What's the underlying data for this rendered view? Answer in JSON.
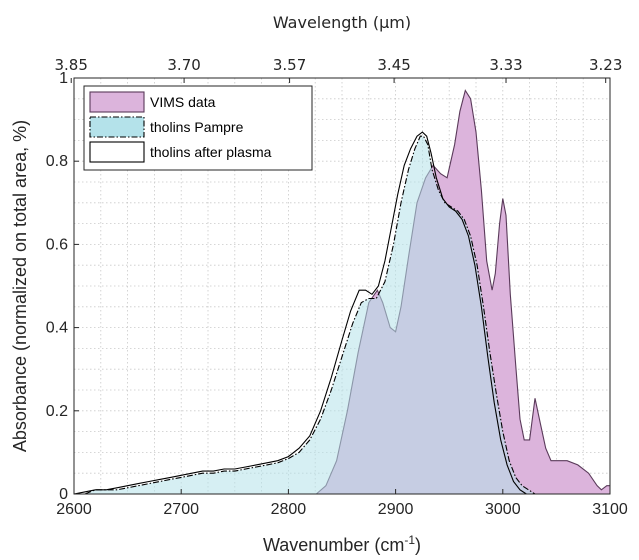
{
  "chart_data": {
    "type": "area",
    "xlabel": "Wavenumber (cm",
    "xlabel_sup": "-1",
    "xlabel_end": ")",
    "ylabel": "Absorbance (normalized on total area, %)",
    "top_xlabel": "Wavelength (µm)",
    "xlim": [
      2600,
      3100
    ],
    "ylim": [
      0,
      1
    ],
    "x_ticks": [
      2600,
      2700,
      2800,
      2900,
      3000,
      3100
    ],
    "x_tick_labels": [
      "2600",
      "2700",
      "2800",
      "2900",
      "3000",
      "3100"
    ],
    "y_ticks": [
      0,
      0.2,
      0.4,
      0.6,
      0.8,
      1
    ],
    "y_tick_labels": [
      "0",
      "0.2",
      "0.4",
      "0.6",
      "0.8",
      "1"
    ],
    "top_ticks": [
      {
        "wavenumber": 2597.4,
        "label": "3.85"
      },
      {
        "wavenumber": 2702.7,
        "label": "3.70"
      },
      {
        "wavenumber": 2801.1,
        "label": "3.57"
      },
      {
        "wavenumber": 2898.6,
        "label": "3.45"
      },
      {
        "wavenumber": 3003.0,
        "label": "3.33"
      },
      {
        "wavenumber": 3095.98,
        "label": "3.23"
      }
    ],
    "grid": true,
    "legend_position": "top-left",
    "series": [
      {
        "name": "VIMS data",
        "style": "filled",
        "fill": "#dcb4dc",
        "stroke": "#5a3a5a",
        "dash": "",
        "x": [
          2826,
          2835,
          2845,
          2855,
          2865,
          2875,
          2883,
          2888,
          2895,
          2900,
          2905,
          2912,
          2920,
          2928,
          2935,
          2942,
          2948,
          2955,
          2960,
          2965,
          2970,
          2975,
          2980,
          2985,
          2990,
          2993,
          2997,
          3000,
          3003,
          3007,
          3012,
          3016,
          3020,
          3025,
          3030,
          3035,
          3040,
          3045,
          3050,
          3060,
          3070,
          3080,
          3088,
          3092,
          3097,
          3100
        ],
        "y": [
          0.0,
          0.02,
          0.08,
          0.2,
          0.34,
          0.46,
          0.49,
          0.46,
          0.4,
          0.39,
          0.45,
          0.57,
          0.7,
          0.76,
          0.79,
          0.77,
          0.76,
          0.84,
          0.92,
          0.97,
          0.95,
          0.87,
          0.73,
          0.56,
          0.49,
          0.53,
          0.65,
          0.71,
          0.67,
          0.48,
          0.31,
          0.18,
          0.13,
          0.13,
          0.23,
          0.17,
          0.11,
          0.08,
          0.08,
          0.08,
          0.07,
          0.05,
          0.02,
          0.01,
          0.02,
          0.02
        ]
      },
      {
        "name": "tholins Pampre",
        "style": "filled",
        "fill": "#b4e2ea",
        "stroke": "#000000",
        "dash": "6 2 1.5 2",
        "x": [
          2600,
          2610,
          2620,
          2630,
          2640,
          2650,
          2660,
          2670,
          2680,
          2690,
          2700,
          2710,
          2720,
          2730,
          2740,
          2750,
          2760,
          2770,
          2780,
          2790,
          2800,
          2810,
          2820,
          2830,
          2840,
          2850,
          2860,
          2868,
          2875,
          2882,
          2890,
          2898,
          2905,
          2912,
          2918,
          2923,
          2926,
          2930,
          2934,
          2940,
          2946,
          2952,
          2958,
          2964,
          2970,
          2976,
          2982,
          2988,
          2994,
          3000,
          3006,
          3012,
          3018,
          3024,
          3030
        ],
        "y": [
          0.0,
          0.0,
          0.01,
          0.01,
          0.01,
          0.015,
          0.02,
          0.025,
          0.03,
          0.035,
          0.04,
          0.045,
          0.05,
          0.05,
          0.055,
          0.055,
          0.06,
          0.065,
          0.07,
          0.075,
          0.085,
          0.1,
          0.13,
          0.18,
          0.25,
          0.33,
          0.41,
          0.46,
          0.47,
          0.47,
          0.51,
          0.6,
          0.7,
          0.78,
          0.83,
          0.86,
          0.86,
          0.84,
          0.78,
          0.73,
          0.7,
          0.69,
          0.68,
          0.66,
          0.62,
          0.55,
          0.45,
          0.34,
          0.24,
          0.15,
          0.08,
          0.04,
          0.02,
          0.01,
          0.0
        ]
      },
      {
        "name": "tholins after plasma",
        "style": "outline",
        "fill": "none",
        "stroke": "#000000",
        "dash": "",
        "x": [
          2600,
          2610,
          2620,
          2630,
          2640,
          2650,
          2660,
          2670,
          2680,
          2690,
          2700,
          2710,
          2720,
          2730,
          2740,
          2750,
          2760,
          2770,
          2780,
          2790,
          2800,
          2810,
          2820,
          2830,
          2840,
          2850,
          2858,
          2866,
          2872,
          2878,
          2884,
          2890,
          2896,
          2902,
          2908,
          2914,
          2920,
          2925,
          2929,
          2933,
          2938,
          2944,
          2950,
          2956,
          2962,
          2968,
          2974,
          2980,
          2986,
          2992,
          2998,
          3004,
          3010,
          3016,
          3022
        ],
        "y": [
          0.0,
          0.005,
          0.01,
          0.01,
          0.015,
          0.02,
          0.025,
          0.03,
          0.035,
          0.04,
          0.045,
          0.05,
          0.055,
          0.055,
          0.06,
          0.06,
          0.065,
          0.07,
          0.075,
          0.08,
          0.09,
          0.11,
          0.14,
          0.2,
          0.28,
          0.37,
          0.44,
          0.49,
          0.49,
          0.48,
          0.5,
          0.56,
          0.64,
          0.72,
          0.79,
          0.83,
          0.86,
          0.87,
          0.86,
          0.82,
          0.76,
          0.71,
          0.69,
          0.68,
          0.66,
          0.62,
          0.55,
          0.45,
          0.33,
          0.22,
          0.13,
          0.07,
          0.03,
          0.01,
          0.0
        ]
      }
    ]
  }
}
